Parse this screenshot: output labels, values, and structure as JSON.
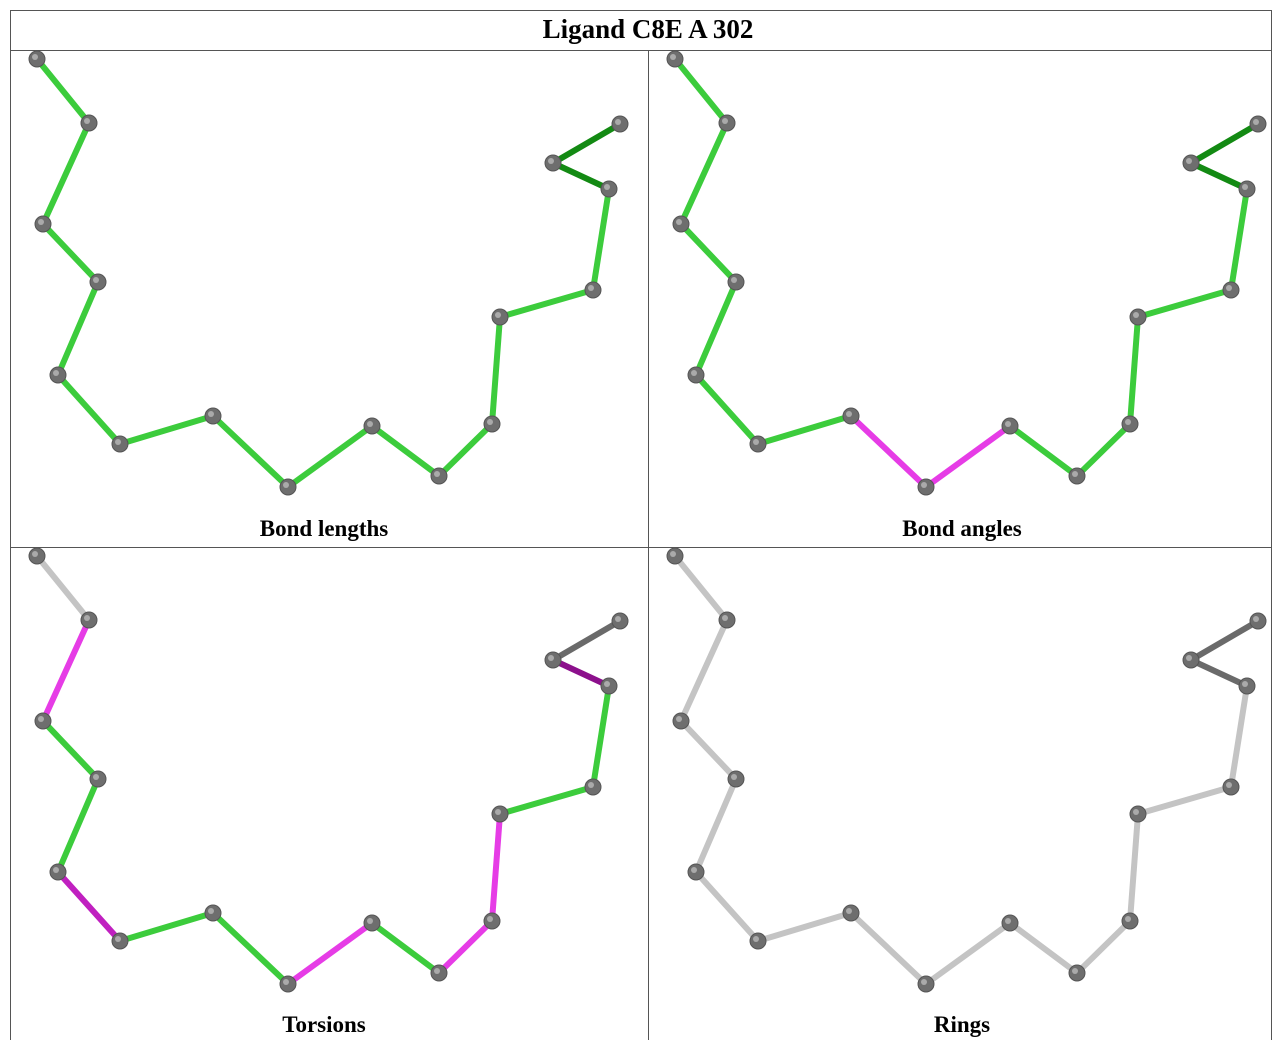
{
  "header": {
    "title": "Ligand C8E A 302"
  },
  "panels": [
    {
      "caption": "Bond lengths"
    },
    {
      "caption": "Bond angles"
    },
    {
      "caption": "Torsions"
    },
    {
      "caption": "Rings"
    }
  ]
}
